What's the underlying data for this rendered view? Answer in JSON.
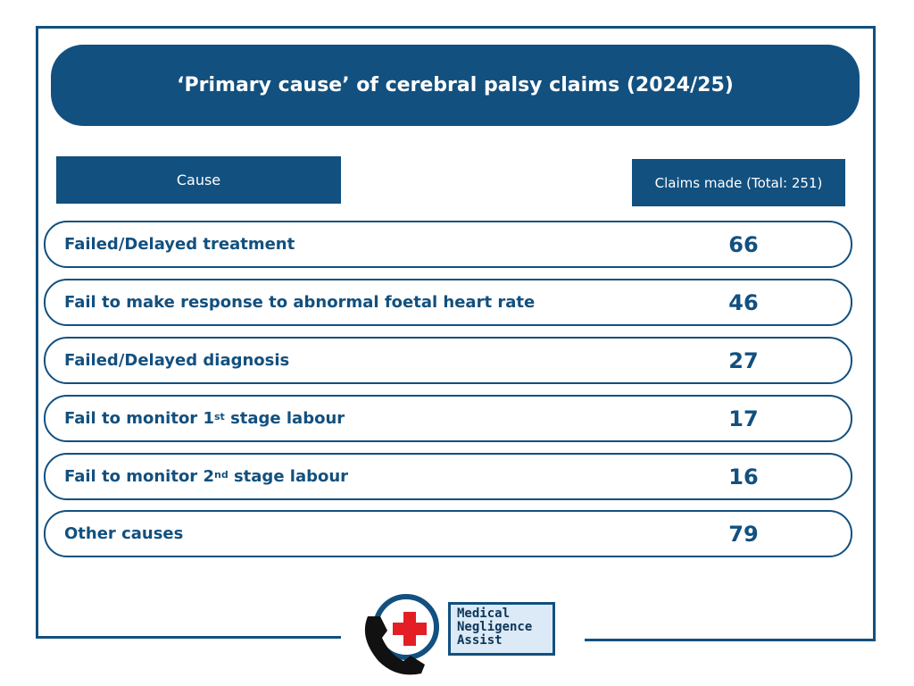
{
  "chart_data": {
    "type": "table",
    "title": "‘Primary cause’ of cerebral palsy claims (2024/25)",
    "columns": [
      "Cause",
      "Claims made (Total: 251)"
    ],
    "rows": [
      {
        "cause": "Failed/Delayed treatment",
        "claims": 66
      },
      {
        "cause": "Fail to make response to abnormal foetal heart rate",
        "claims": 46
      },
      {
        "cause": "Failed/Delayed diagnosis",
        "claims": 27
      },
      {
        "cause": "Fail to monitor 1st stage labour",
        "cause_base": "Fail to monitor 1",
        "cause_sup": "st",
        "cause_rest": " stage labour",
        "claims": 17
      },
      {
        "cause": "Fail to monitor 2nd stage labour",
        "cause_base": "Fail to monitor 2",
        "cause_sup": "nd",
        "cause_rest": " stage labour",
        "claims": 16
      },
      {
        "cause": "Other causes",
        "claims": 79
      }
    ]
  },
  "logo": {
    "line1": "Medical",
    "line2": "Negligence",
    "line3": "Assist"
  },
  "colors": {
    "brand": "#12507f",
    "accent_red": "#e31e24",
    "logo_bg": "#dbeaf6"
  },
  "icons": {
    "cross": "red-cross-icon",
    "phone": "phone-icon"
  }
}
